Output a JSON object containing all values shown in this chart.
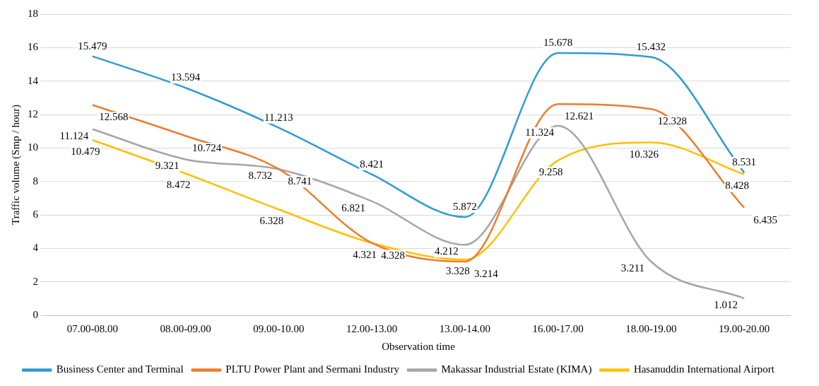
{
  "chart_data": {
    "type": "line",
    "xlabel": "Observation time",
    "ylabel": "Traffic volume (Smp / hour)",
    "categories": [
      "07.00-08.00",
      "08.00-09.00",
      "09.00-10.00",
      "12.00-13.00",
      "13.00-14.00",
      "16.00-17.00",
      "18.00-19.00",
      "19.00-20.00"
    ],
    "series": [
      {
        "name": "Business Center and Terminal",
        "color": "#2e9bd6",
        "values": [
          15.479,
          13.594,
          11.213,
          8.421,
          5.872,
          15.678,
          15.432,
          8.531
        ]
      },
      {
        "name": "PLTU Power Plant and Sermani Industry",
        "color": "#f07b2b",
        "values": [
          12.568,
          10.724,
          8.741,
          4.328,
          3.214,
          12.621,
          12.328,
          6.435
        ]
      },
      {
        "name": "Makassar Industrial Estate (KIMA)",
        "color": "#a5a5a5",
        "values": [
          11.124,
          9.321,
          8.732,
          6.821,
          4.212,
          11.324,
          3.211,
          1.012
        ]
      },
      {
        "name": "Hasanuddin International Airport",
        "color": "#ffc000",
        "values": [
          10.479,
          8.472,
          6.328,
          4.321,
          3.328,
          9.258,
          10.326,
          8.428
        ]
      }
    ],
    "ylim": [
      0,
      18
    ],
    "yticks": [
      0,
      2,
      4,
      6,
      8,
      10,
      12,
      14,
      16,
      18
    ],
    "grid": "y",
    "legend": "bottom",
    "marker": "none",
    "line_style": "solid",
    "data_labels": true
  }
}
